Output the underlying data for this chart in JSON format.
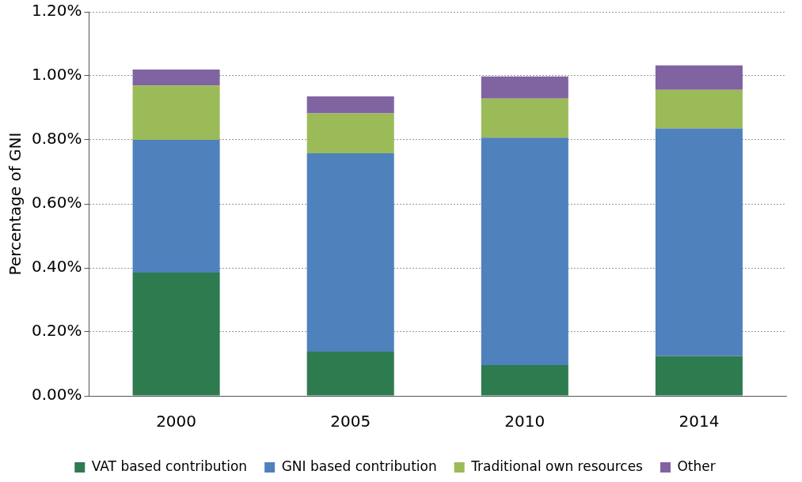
{
  "chart_data": {
    "type": "bar",
    "stacked": true,
    "ylabel": "Percentage of GNI",
    "categories": [
      "2000",
      "2005",
      "2010",
      "2014"
    ],
    "series": [
      {
        "name": "VAT based contribution",
        "color": "#2e7b50",
        "values": [
          0.385,
          0.138,
          0.096,
          0.125
        ]
      },
      {
        "name": "GNI based contribution",
        "color": "#4f81bd",
        "values": [
          0.415,
          0.62,
          0.711,
          0.711
        ]
      },
      {
        "name": "Traditional own resources",
        "color": "#9bbb59",
        "values": [
          0.17,
          0.125,
          0.122,
          0.12
        ]
      },
      {
        "name": "Other",
        "color": "#8064a2",
        "values": [
          0.05,
          0.053,
          0.069,
          0.077
        ]
      }
    ],
    "ylim": [
      0,
      1.2
    ],
    "yticks": [
      {
        "value": 0,
        "label": "0.00%"
      },
      {
        "value": 0.2,
        "label": "0.20%"
      },
      {
        "value": 0.4,
        "label": "0.40%"
      },
      {
        "value": 0.6,
        "label": "0.60%"
      },
      {
        "value": 0.8,
        "label": "0.80%"
      },
      {
        "value": 1.0,
        "label": "1.00%"
      },
      {
        "value": 1.2,
        "label": "1.20%"
      }
    ],
    "grid": "y",
    "line_style": "dotted",
    "legend": "bottom"
  }
}
